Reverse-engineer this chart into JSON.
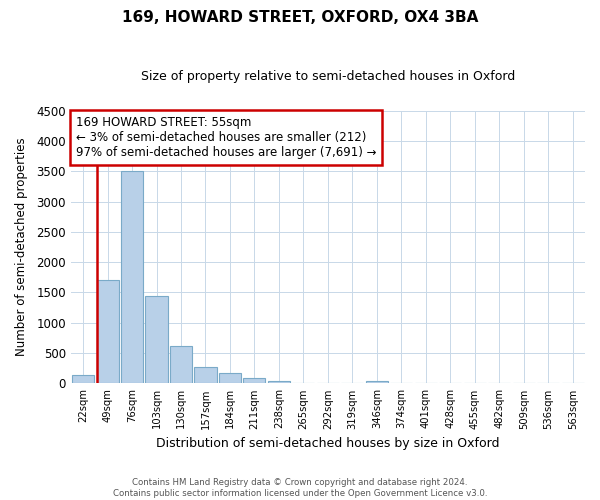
{
  "title": "169, HOWARD STREET, OXFORD, OX4 3BA",
  "subtitle": "Size of property relative to semi-detached houses in Oxford",
  "xlabel": "Distribution of semi-detached houses by size in Oxford",
  "ylabel": "Number of semi-detached properties",
  "bin_labels": [
    "22sqm",
    "49sqm",
    "76sqm",
    "103sqm",
    "130sqm",
    "157sqm",
    "184sqm",
    "211sqm",
    "238sqm",
    "265sqm",
    "292sqm",
    "319sqm",
    "346sqm",
    "374sqm",
    "401sqm",
    "428sqm",
    "455sqm",
    "482sqm",
    "509sqm",
    "536sqm",
    "563sqm"
  ],
  "bar_values": [
    140,
    1700,
    3500,
    1450,
    620,
    270,
    165,
    90,
    45,
    0,
    0,
    0,
    40,
    0,
    0,
    0,
    0,
    0,
    0,
    0,
    0
  ],
  "property_line_index": 1,
  "ylim": [
    0,
    4500
  ],
  "yticks": [
    0,
    500,
    1000,
    1500,
    2000,
    2500,
    3000,
    3500,
    4000,
    4500
  ],
  "bar_color_blue": "#b8d0e8",
  "bar_edge_color": "#7aaac8",
  "line_color_red": "#cc0000",
  "annotation_text": "169 HOWARD STREET: 55sqm\n← 3% of semi-detached houses are smaller (212)\n97% of semi-detached houses are larger (7,691) →",
  "annotation_box_color": "#ffffff",
  "annotation_box_edge": "#cc0000",
  "footer_line1": "Contains HM Land Registry data © Crown copyright and database right 2024.",
  "footer_line2": "Contains public sector information licensed under the Open Government Licence v3.0.",
  "bg_color": "#ffffff",
  "grid_color": "#c8d8e8"
}
